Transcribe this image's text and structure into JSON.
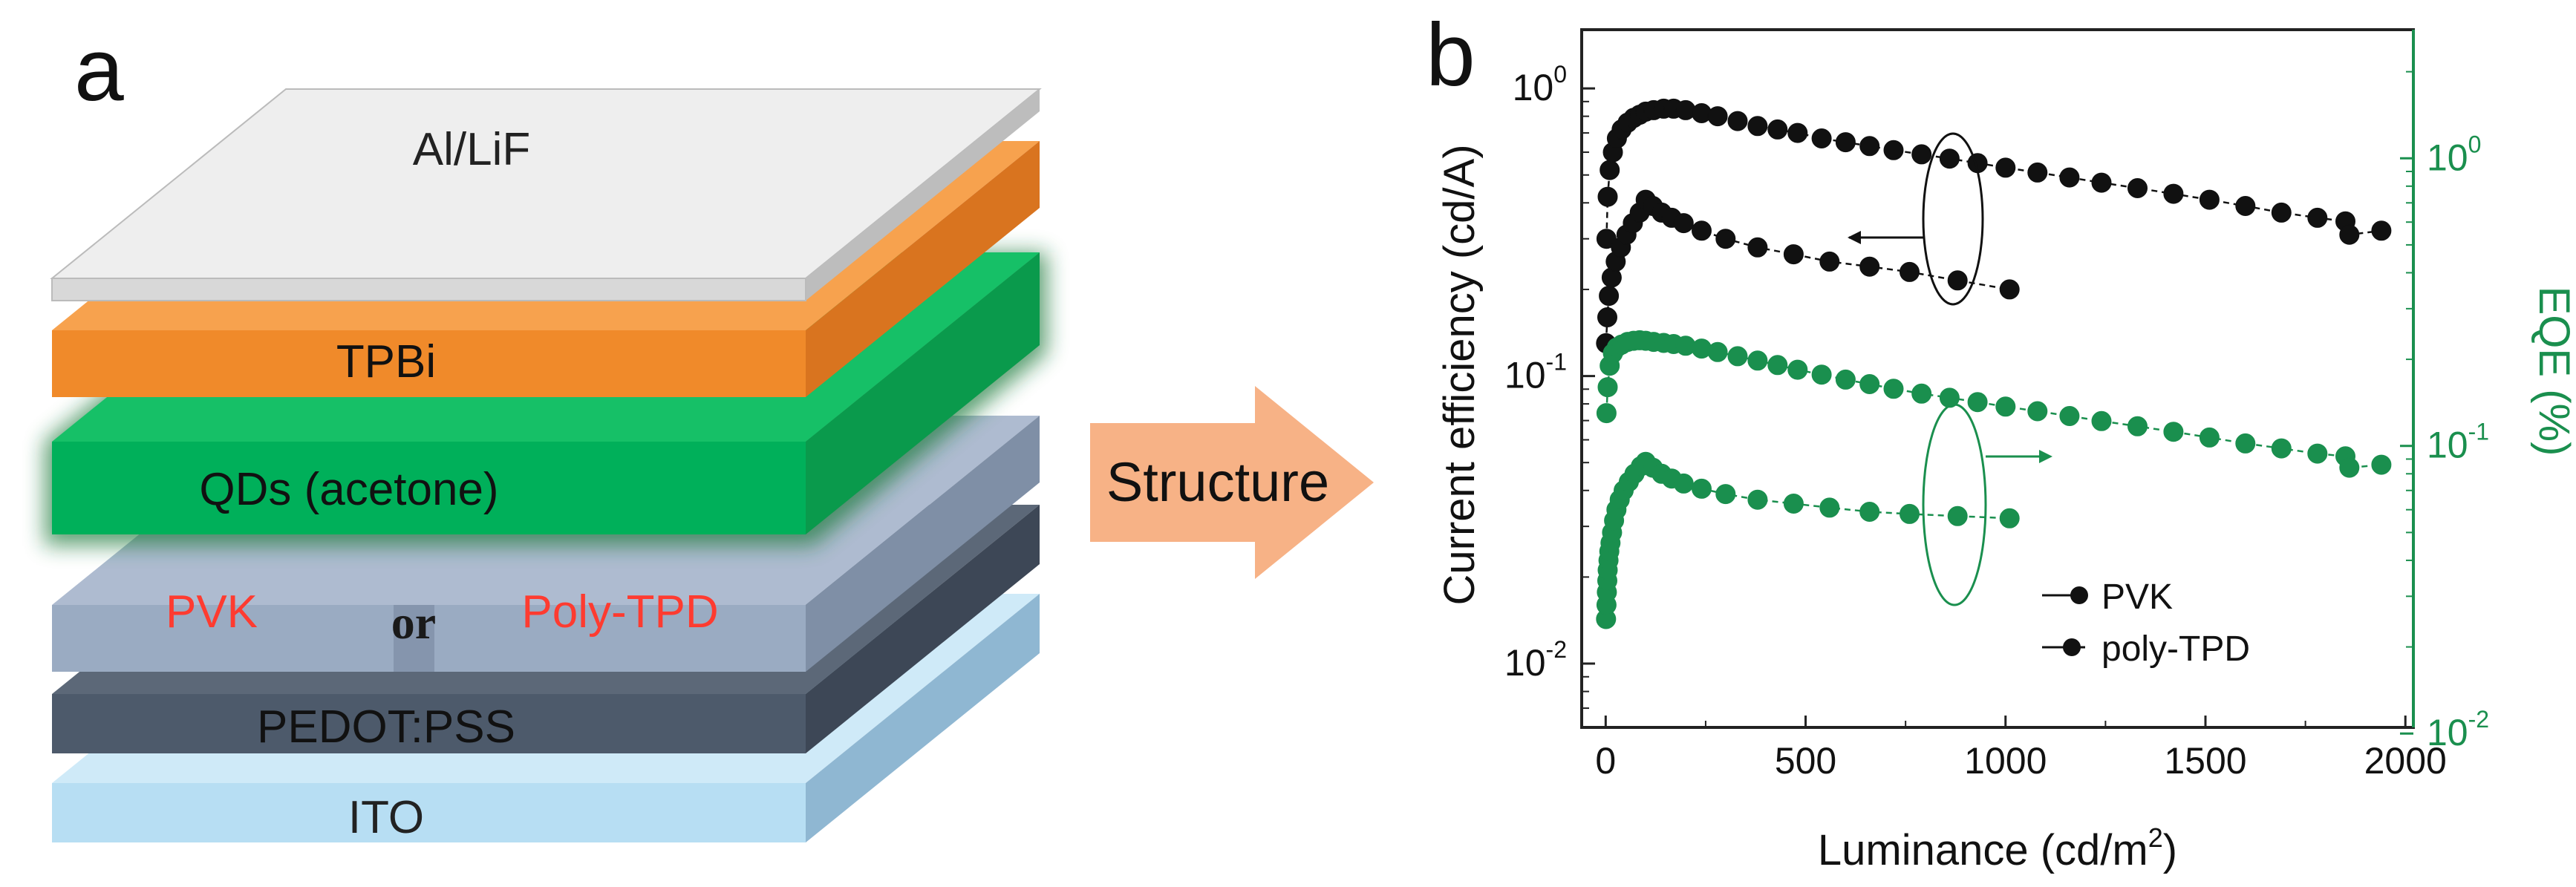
{
  "panel_a": {
    "letter": "a",
    "layers": {
      "al_lif": "Al/LiF",
      "tpbi": "TPBi",
      "qds": "QDs (acetone)",
      "pvk": "PVK",
      "or_word": "or",
      "poly_tpd": "Poly-TPD",
      "pedot": "PEDOT:PSS",
      "ito": "ITO"
    },
    "colors": {
      "al_lif": "#eeeeee",
      "tpbi": "#f08a2a",
      "qds": "#00b05a",
      "htl": "#9aabc2",
      "pedot": "#4d5a6b",
      "ito": "#b7def3",
      "red_text": "#ff3b30"
    }
  },
  "arrow": {
    "label": "Structure",
    "color": "#f7b286"
  },
  "panel_b": {
    "letter": "b"
  },
  "chart_data": {
    "type": "scatter",
    "title": "",
    "xlabel": "Luminance (cd/m2)",
    "xlabel_main": "Luminance (cd/m",
    "xlabel_sup": "2",
    "xlabel_end": ")",
    "ylabel": "Current efficiency (cd/A)",
    "y2label": "EQE (%)",
    "xlim": [
      -60,
      2020
    ],
    "ylim": [
      0.006,
      1.6
    ],
    "y2lim": [
      0.0105,
      2.8
    ],
    "yscale": "log",
    "y2scale": "log",
    "xticks": [
      0,
      500,
      1000,
      1500,
      2000
    ],
    "xtick_labels": [
      "0",
      "500",
      "1000",
      "1500",
      "2000"
    ],
    "yticks": [
      0.01,
      0.1,
      1
    ],
    "ytick_base": [
      "10",
      "10",
      "10"
    ],
    "ytick_exp": [
      "-2",
      "-1",
      "0"
    ],
    "y2ticks": [
      0.01,
      0.1,
      1
    ],
    "y2tick_base": [
      "10",
      "10",
      "10"
    ],
    "y2tick_exp": [
      "-2",
      "-1",
      "0"
    ],
    "grid": false,
    "legend": [
      "PVK",
      "poly-TPD"
    ],
    "legend_position": "bottom-right",
    "series": [
      {
        "name": "PVK current efficiency",
        "axis": "left",
        "color": "#111111",
        "x": [
          2,
          5,
          10,
          18,
          28,
          40,
          55,
          70,
          85,
          100,
          120,
          145,
          170,
          200,
          240,
          280,
          330,
          380,
          430,
          480,
          540,
          600,
          660,
          720,
          790,
          860,
          930,
          1000,
          1080,
          1160,
          1240,
          1330,
          1420,
          1510,
          1600,
          1690,
          1780,
          1850,
          1860,
          1940
        ],
        "values": [
          0.3,
          0.42,
          0.52,
          0.6,
          0.67,
          0.72,
          0.76,
          0.79,
          0.81,
          0.83,
          0.84,
          0.85,
          0.85,
          0.84,
          0.82,
          0.8,
          0.77,
          0.74,
          0.72,
          0.7,
          0.67,
          0.65,
          0.63,
          0.61,
          0.59,
          0.57,
          0.55,
          0.53,
          0.51,
          0.49,
          0.47,
          0.45,
          0.43,
          0.41,
          0.39,
          0.37,
          0.355,
          0.345,
          0.31,
          0.32
        ]
      },
      {
        "name": "poly-TPD current efficiency",
        "axis": "left",
        "color": "#111111",
        "x": [
          1,
          4,
          8,
          15,
          25,
          38,
          52,
          68,
          85,
          100,
          118,
          140,
          165,
          195,
          240,
          300,
          380,
          470,
          560,
          660,
          760,
          880,
          1010
        ],
        "values": [
          0.13,
          0.16,
          0.19,
          0.22,
          0.25,
          0.28,
          0.31,
          0.34,
          0.37,
          0.41,
          0.39,
          0.37,
          0.355,
          0.34,
          0.32,
          0.3,
          0.28,
          0.265,
          0.25,
          0.24,
          0.23,
          0.215,
          0.2
        ]
      },
      {
        "name": "PVK EQE",
        "axis": "right",
        "color": "#1a8f4e",
        "x": [
          2,
          5,
          10,
          18,
          28,
          40,
          55,
          70,
          85,
          100,
          120,
          145,
          170,
          200,
          240,
          280,
          330,
          380,
          430,
          480,
          540,
          600,
          660,
          720,
          790,
          860,
          930,
          1000,
          1080,
          1160,
          1240,
          1330,
          1420,
          1510,
          1600,
          1690,
          1780,
          1850,
          1860,
          1940
        ],
        "values": [
          0.13,
          0.16,
          0.19,
          0.21,
          0.22,
          0.225,
          0.23,
          0.232,
          0.233,
          0.232,
          0.23,
          0.228,
          0.226,
          0.223,
          0.218,
          0.212,
          0.205,
          0.198,
          0.191,
          0.184,
          0.177,
          0.17,
          0.164,
          0.158,
          0.152,
          0.147,
          0.142,
          0.137,
          0.132,
          0.127,
          0.122,
          0.117,
          0.112,
          0.107,
          0.102,
          0.098,
          0.094,
          0.092,
          0.084,
          0.086
        ]
      },
      {
        "name": "poly-TPD EQE",
        "axis": "right",
        "color": "#1a8f4e",
        "x": [
          1,
          2,
          3,
          4,
          5,
          7,
          9,
          12,
          16,
          21,
          27,
          35,
          45,
          58,
          72,
          88,
          100,
          118,
          140,
          165,
          195,
          240,
          300,
          380,
          470,
          560,
          660,
          760,
          880,
          1010
        ],
        "values": [
          0.025,
          0.028,
          0.031,
          0.034,
          0.037,
          0.04,
          0.043,
          0.046,
          0.05,
          0.055,
          0.06,
          0.065,
          0.07,
          0.075,
          0.08,
          0.085,
          0.088,
          0.084,
          0.08,
          0.077,
          0.074,
          0.071,
          0.068,
          0.065,
          0.063,
          0.061,
          0.059,
          0.058,
          0.057,
          0.056
        ]
      }
    ]
  }
}
